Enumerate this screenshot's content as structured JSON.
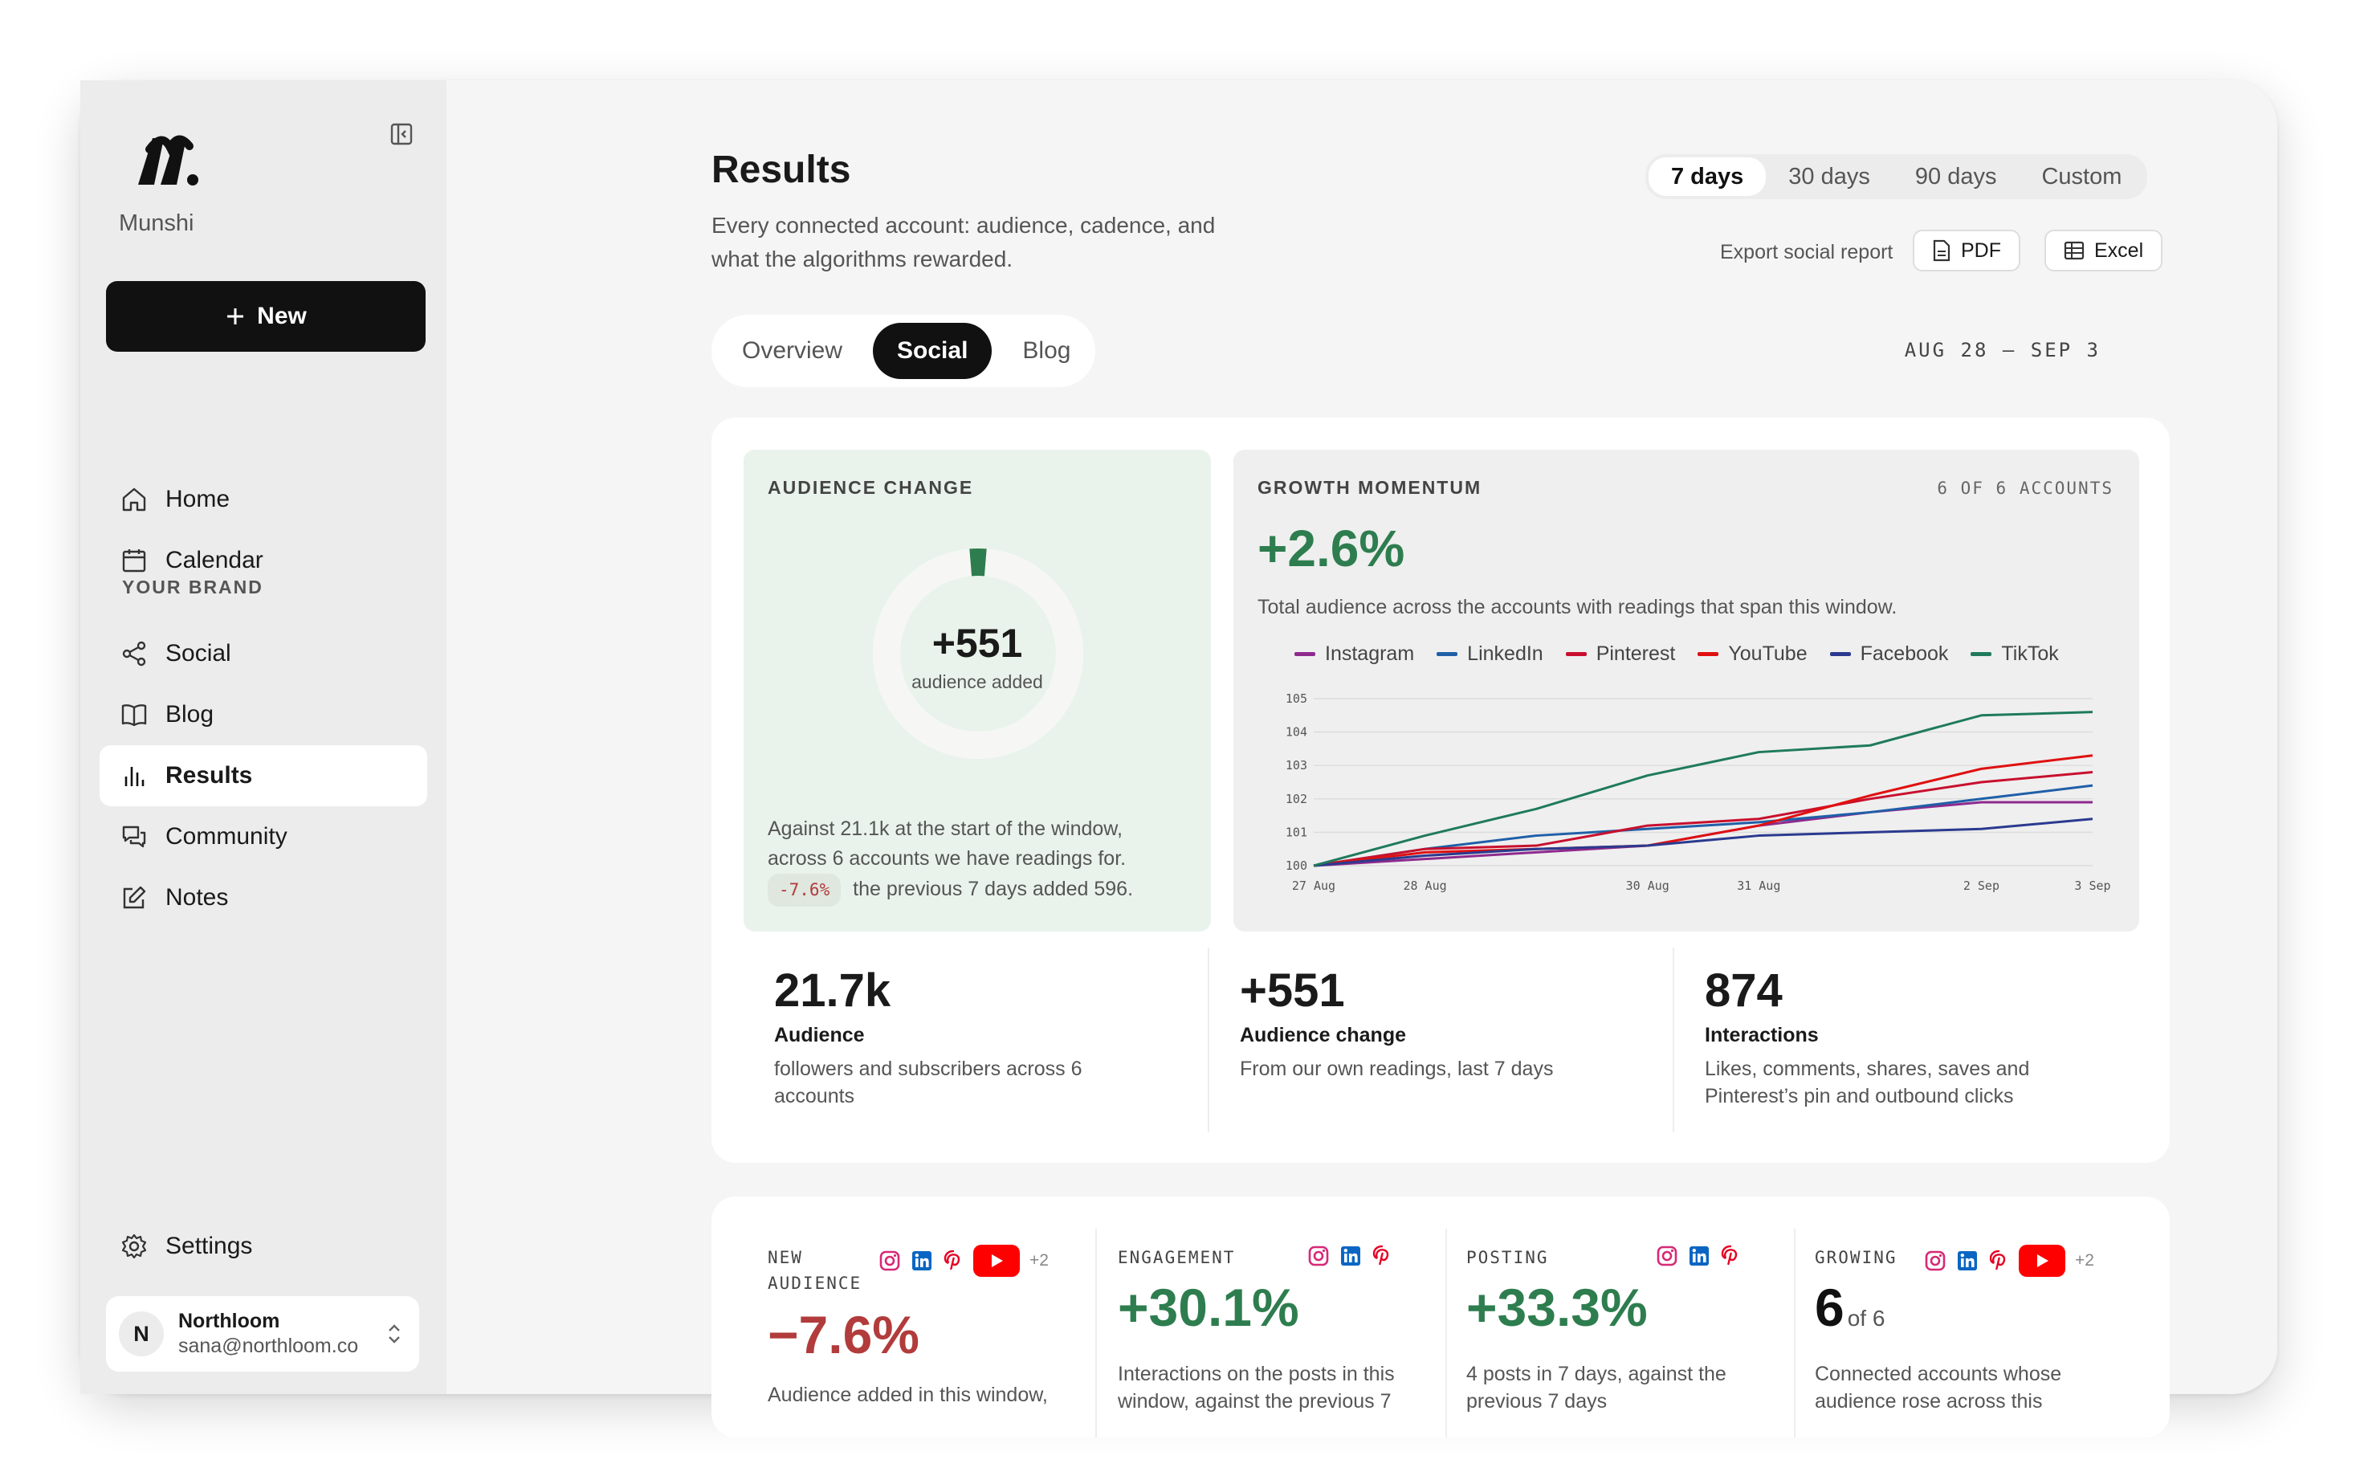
{
  "sidebar": {
    "brand": "Munshi",
    "new_label": "New",
    "nav": [
      {
        "label": "Home"
      },
      {
        "label": "Calendar"
      }
    ],
    "section_label": "YOUR BRAND",
    "brand_nav": [
      {
        "label": "Social"
      },
      {
        "label": "Blog"
      },
      {
        "label": "Results"
      },
      {
        "label": "Community"
      },
      {
        "label": "Notes"
      }
    ],
    "settings_label": "Settings",
    "account": {
      "initial": "N",
      "name": "Northloom",
      "email": "sana@northloom.co"
    }
  },
  "header": {
    "title": "Results",
    "subtitle": "Every connected account: audience, cadence, and what the algorithms rewarded.",
    "ranges": [
      "7 days",
      "30 days",
      "90 days",
      "Custom"
    ],
    "active_range": "7 days",
    "export_label": "Export social report",
    "pdf_label": "PDF",
    "excel_label": "Excel",
    "view_tabs": [
      "Overview",
      "Social",
      "Blog"
    ],
    "active_view": "Social",
    "date_range": "AUG 28 – SEP 3"
  },
  "audience_change": {
    "label": "AUDIENCE CHANGE",
    "value": "+551",
    "caption": "audience added",
    "fraction": 0.026,
    "note": "Against 21.1k at the start of the window, across 6 accounts we have readings for.",
    "pill": "-7.6%",
    "note_tail": "the previous 7 days added 596."
  },
  "growth": {
    "label": "GROWTH MOMENTUM",
    "accounts": "6 OF 6 ACCOUNTS",
    "value": "+2.6%",
    "description": "Total audience across the accounts with readings that span this window."
  },
  "chart_data": {
    "type": "line",
    "x": [
      "27 Aug",
      "28 Aug",
      "29 Aug",
      "30 Aug",
      "31 Aug",
      "1 Sep",
      "2 Sep",
      "3 Sep"
    ],
    "x_tick_labels": [
      "27 Aug",
      "28 Aug",
      "30 Aug",
      "31 Aug",
      "2 Sep",
      "3 Sep"
    ],
    "ylim": [
      100,
      105
    ],
    "y_ticks": [
      "100",
      "101",
      "102",
      "103",
      "104",
      "105"
    ],
    "grid": true,
    "legend_position": "top",
    "series": [
      {
        "name": "Instagram",
        "color": "#8e2a8e",
        "values": [
          100,
          100.2,
          100.4,
          100.6,
          101.2,
          101.6,
          101.9,
          101.9
        ]
      },
      {
        "name": "LinkedIn",
        "color": "#1f5fa8",
        "values": [
          100,
          100.5,
          100.9,
          101.1,
          101.3,
          101.6,
          102.0,
          102.4
        ]
      },
      {
        "name": "Pinterest",
        "color": "#c8102e",
        "values": [
          100,
          100.5,
          100.6,
          101.2,
          101.4,
          102.0,
          102.5,
          102.8
        ]
      },
      {
        "name": "YouTube",
        "color": "#e01010",
        "values": [
          100,
          100.4,
          100.5,
          100.6,
          101.2,
          102.1,
          102.9,
          103.3
        ]
      },
      {
        "name": "Facebook",
        "color": "#2b3a8f",
        "values": [
          100,
          100.3,
          100.5,
          100.6,
          100.9,
          101.0,
          101.1,
          101.4
        ]
      },
      {
        "name": "TikTok",
        "color": "#1f7a5c",
        "values": [
          100,
          100.9,
          101.7,
          102.7,
          103.4,
          103.6,
          104.5,
          104.6
        ]
      }
    ]
  },
  "stats": [
    {
      "value": "21.7k",
      "label": "Audience",
      "desc": "followers and subscribers across 6 accounts"
    },
    {
      "value": "+551",
      "label": "Audience change",
      "desc": "From our own readings, last 7 days"
    },
    {
      "value": "874",
      "label": "Interactions",
      "desc": "Likes, comments, shares, saves and Pinterest’s pin and outbound clicks"
    }
  ],
  "kpis": [
    {
      "label": "NEW AUDIENCE",
      "value": "−7.6%",
      "value_color": "#b23b3b",
      "desc": "Audience added in this window,",
      "more": "+2"
    },
    {
      "label": "ENGAGEMENT",
      "value": "+30.1%",
      "value_color": "#2e7d4f",
      "desc": "Interactions on the posts in this window, against the previous 7",
      "more": ""
    },
    {
      "label": "POSTING",
      "value": "+33.3%",
      "value_color": "#2e7d4f",
      "desc": "4 posts in 7 days, against the previous 7 days",
      "more": ""
    },
    {
      "label": "GROWING",
      "value": "6",
      "value_suffix": "of 6",
      "value_color": "#111111",
      "desc": "Connected accounts whose audience rose across this",
      "more": "+2"
    }
  ],
  "colors": {
    "accent": "#111111",
    "green": "#2e7d4f",
    "red": "#b23b3b",
    "instagram": "#d62976",
    "linkedin": "#0a66c2",
    "pinterest": "#e60023",
    "youtube": "#ff0000"
  }
}
